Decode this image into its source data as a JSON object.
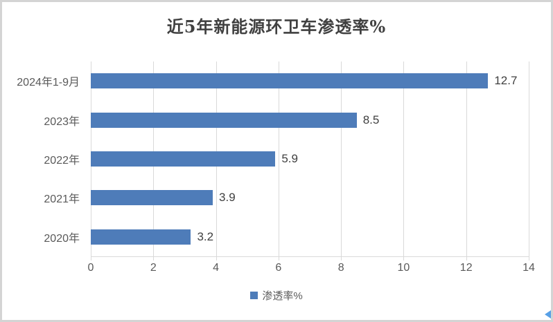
{
  "chart_data": {
    "type": "bar",
    "orientation": "horizontal",
    "title": "近5年新能源环卫车渗透率%",
    "categories": [
      "2024年1-9月",
      "2023年",
      "2022年",
      "2021年",
      "2020年"
    ],
    "values": [
      12.7,
      8.5,
      5.9,
      3.9,
      3.2
    ],
    "data_labels": [
      "12.7",
      "8.5",
      "5.9",
      "3.9",
      "3.2"
    ],
    "series_name": "渗透率%",
    "xlabel": "",
    "ylabel": "",
    "xlim": [
      0,
      14
    ],
    "x_ticks": [
      0,
      2,
      4,
      6,
      8,
      10,
      12,
      14
    ],
    "grid": true,
    "legend_position": "bottom",
    "bar_color": "#4e7cb9"
  },
  "legend": {
    "label": "渗透率%",
    "swatch_color": "#4e7cb9"
  },
  "colors": {
    "bar": "#4e7cb9",
    "gridline": "#d9d9d9",
    "axis_text": "#595959",
    "value_text": "#3f3f3f",
    "title_text": "#404040",
    "frame_border": "#d4d4d4",
    "background": "#ffffff"
  }
}
